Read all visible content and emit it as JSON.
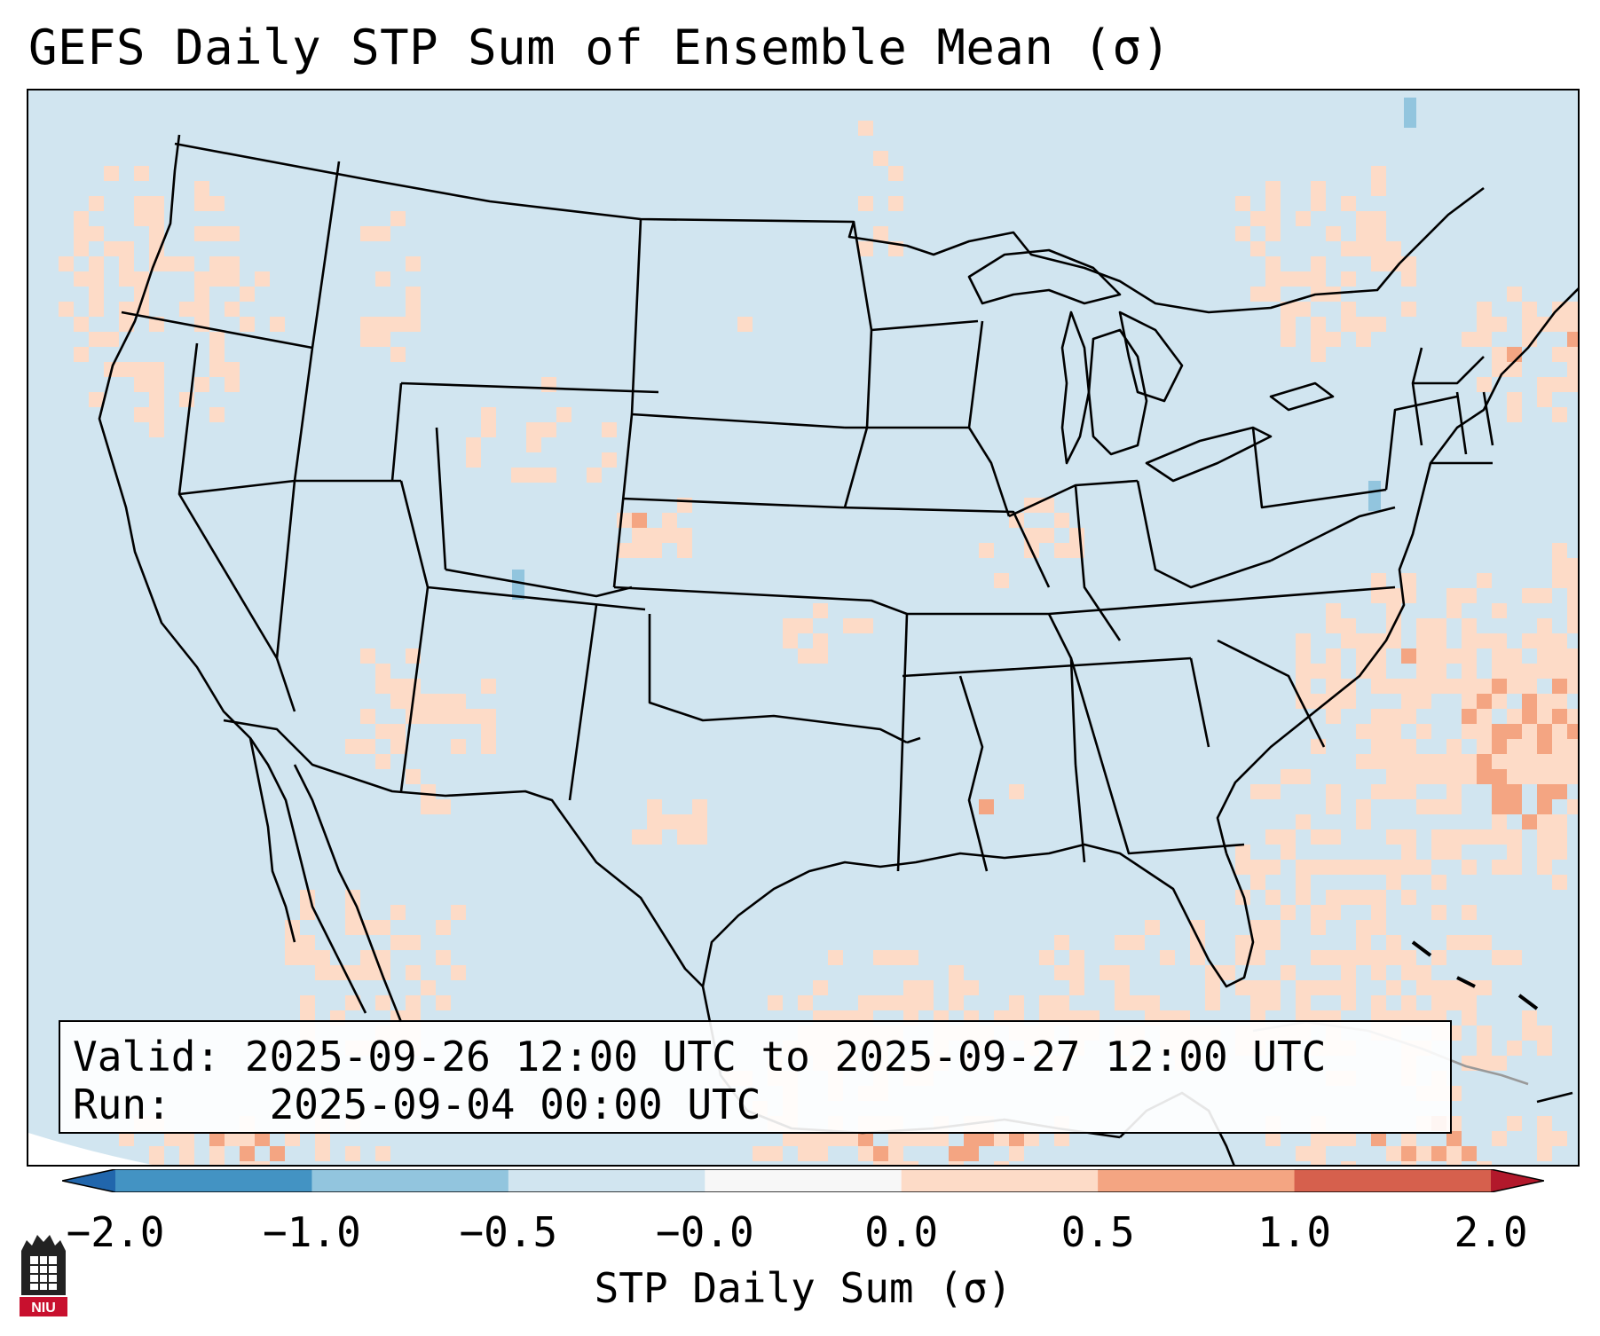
{
  "title": "GEFS Daily STP Sum of Ensemble Mean (σ)",
  "info": {
    "valid_label": "Valid:",
    "valid_value": "2025-09-26 12:00 UTC to 2025-09-27 12:00 UTC",
    "run_label": "Run:",
    "run_value": "2025-09-04 00:00 UTC"
  },
  "colorbar": {
    "label": "STP Daily Sum (σ)",
    "ticks": [
      "−2.0",
      "−1.0",
      "−0.5",
      "−0.0",
      "0.0",
      "0.5",
      "1.0",
      "2.0"
    ],
    "colors": [
      "#4393c3",
      "#92c5de",
      "#d1e5f0",
      "#f7f7f7",
      "#fddbc7",
      "#f4a582",
      "#d6604d"
    ],
    "extend_low_color": "#2166ac",
    "extend_high_color": "#b2182b"
  },
  "map": {
    "background_color": "#d1e5f0",
    "highlight_regions": [
      "Pacific Northwest",
      "Gulf of Mexico",
      "Western Atlantic",
      "Mexico west coast",
      "Colorado",
      "Texas Panhandle",
      "Mississippi"
    ]
  },
  "logo": {
    "text": "NIU"
  }
}
